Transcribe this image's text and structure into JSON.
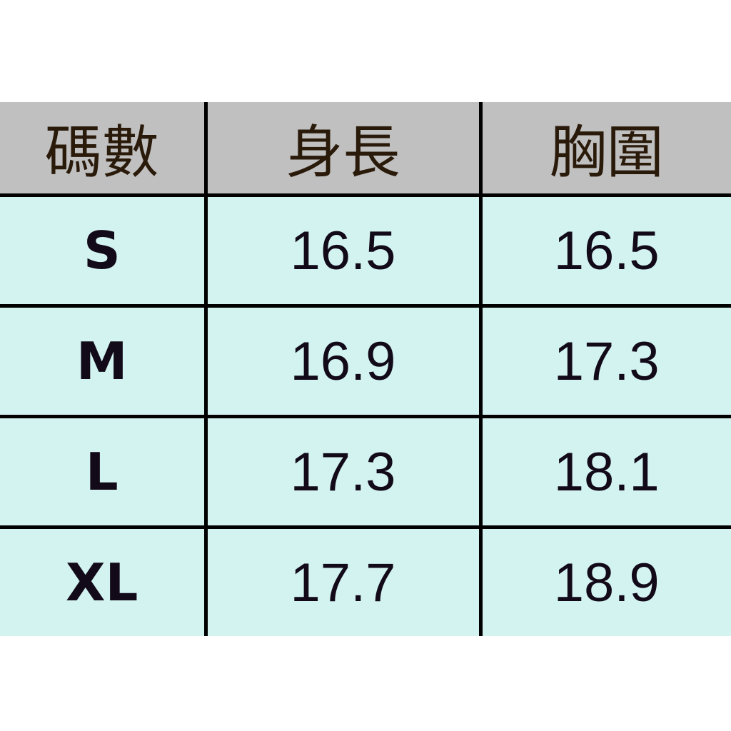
{
  "table": {
    "headers": [
      "碼數",
      "身長",
      "胸圍"
    ],
    "rows": [
      [
        "S",
        "16.5",
        "16.5"
      ],
      [
        "M",
        "16.9",
        "17.3"
      ],
      [
        "L",
        "17.3",
        "18.1"
      ],
      [
        "XL",
        "17.7",
        "18.9"
      ]
    ]
  },
  "colors": {
    "header_bg": "#c0c0c0",
    "cell_bg": "#d3f3f1",
    "border": "#000000"
  }
}
